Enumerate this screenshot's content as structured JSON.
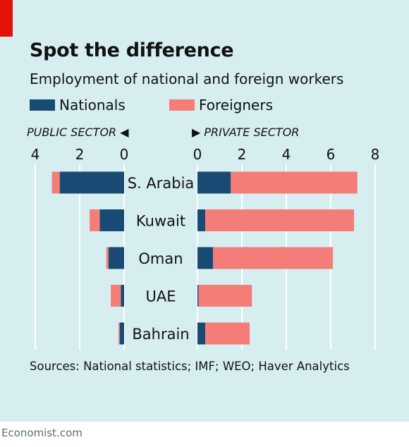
{
  "header": {
    "title": "Spot the difference",
    "subtitle": "Employment of national and foreign workers"
  },
  "legend": {
    "nationals": "Nationals",
    "foreigners": "Foreigners"
  },
  "colors": {
    "nationals": "#184a74",
    "foreigners": "#f47d78",
    "background": "#d6eef0",
    "accent_red": "#e3120b",
    "grid": "#ffffff"
  },
  "footer": {
    "source": "Sources: National statistics; IMF; WEO; Haver Analytics",
    "brand": "Economist.com"
  },
  "chart_data": {
    "type": "bar",
    "orientation": "horizontal",
    "layout": "back-to-back stacked",
    "categories": [
      "S. Arabia",
      "Kuwait",
      "Oman",
      "UAE",
      "Bahrain"
    ],
    "panels": [
      {
        "name": "PUBLIC SECTOR",
        "direction": "left",
        "xlim": [
          0,
          4
        ],
        "ticks": [
          4,
          2,
          0
        ],
        "series": [
          {
            "name": "Nationals",
            "values": [
              2.9,
              1.1,
              0.7,
              0.15,
              0.2
            ]
          },
          {
            "name": "Foreigners",
            "values": [
              0.35,
              0.45,
              0.1,
              0.45,
              0.05
            ]
          }
        ]
      },
      {
        "name": "PRIVATE SECTOR",
        "direction": "right",
        "xlim": [
          0,
          8
        ],
        "ticks": [
          0,
          2,
          4,
          6,
          8
        ],
        "series": [
          {
            "name": "Nationals",
            "values": [
              1.5,
              0.35,
              0.7,
              0.05,
              0.35
            ]
          },
          {
            "name": "Foreigners",
            "values": [
              5.7,
              6.7,
              5.4,
              2.4,
              2.0
            ]
          }
        ]
      }
    ],
    "grid": true,
    "legend_position": "top-left"
  }
}
